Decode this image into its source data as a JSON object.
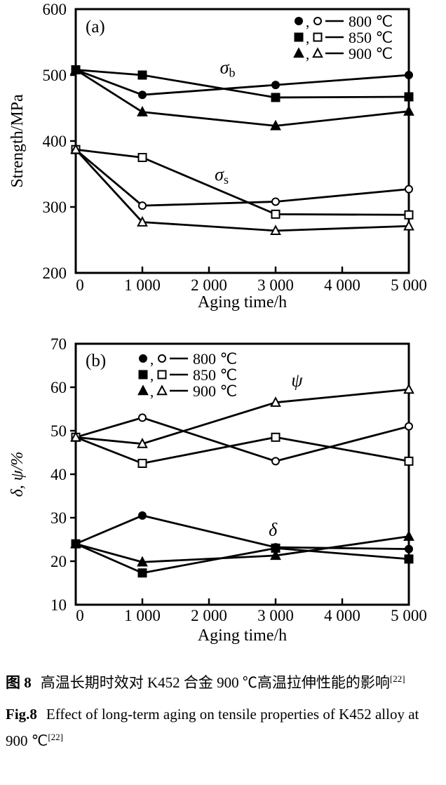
{
  "figure": {
    "panels": [
      "(a)",
      "(b)"
    ]
  },
  "caption": {
    "zh_prefix": "图 8",
    "zh_text": "高温长期时效对 K452 合金 900 ℃高温拉伸性能的影响",
    "zh_sup": "[22]",
    "en_prefix": "Fig.8",
    "en_text": "Effect of long-term aging on tensile properties of K452 alloy at 900 ℃",
    "en_sup": "[22]"
  },
  "chart_data": [
    {
      "id": "a",
      "type": "line",
      "panel_label": "(a)",
      "x": [
        0,
        1000,
        3000,
        5000
      ],
      "xlim": [
        0,
        5000
      ],
      "ylim": [
        200,
        600
      ],
      "x_ticks": [
        0,
        1000,
        2000,
        3000,
        4000,
        5000
      ],
      "x_tick_labels": [
        "0",
        "1 000",
        "2 000",
        "3 000",
        "4 000",
        "5 000"
      ],
      "y_ticks": [
        200,
        300,
        400,
        500,
        600
      ],
      "y_tick_labels": [
        "200",
        "300",
        "400",
        "500",
        "600"
      ],
      "xlabel": "Aging time/h",
      "ylabel": "Strength/MPa",
      "grid": false,
      "legend_position": "top-right",
      "legend": [
        {
          "filled_symbol": "●",
          "open_symbol": "○",
          "marker": "circle",
          "label": "800 ℃"
        },
        {
          "filled_symbol": "■",
          "open_symbol": "□",
          "marker": "square",
          "label": "850 ℃"
        },
        {
          "filled_symbol": "▲",
          "open_symbol": "△",
          "marker": "triangle",
          "label": "900 ℃"
        }
      ],
      "annotations": [
        {
          "text": "σ",
          "sub": "b",
          "x": 2280,
          "y": 511
        },
        {
          "text": "σ",
          "sub": "s",
          "x": 2190,
          "y": 349
        }
      ],
      "series": [
        {
          "name": "σb 800 ℃",
          "group": "σb",
          "temp": "800 ℃",
          "marker": "circle",
          "filled": true,
          "values": [
            508,
            470,
            485,
            500
          ]
        },
        {
          "name": "σb 850 ℃",
          "group": "σb",
          "temp": "850 ℃",
          "marker": "square",
          "filled": true,
          "values": [
            508,
            500,
            466,
            467
          ]
        },
        {
          "name": "σb 900 ℃",
          "group": "σb",
          "temp": "900 ℃",
          "marker": "triangle",
          "filled": true,
          "values": [
            508,
            444,
            423,
            445
          ]
        },
        {
          "name": "σs 800 ℃",
          "group": "σs",
          "temp": "800 ℃",
          "marker": "circle",
          "filled": false,
          "values": [
            387,
            302,
            308,
            327
          ]
        },
        {
          "name": "σs 850 ℃",
          "group": "σs",
          "temp": "850 ℃",
          "marker": "square",
          "filled": false,
          "values": [
            387,
            375,
            289,
            288
          ]
        },
        {
          "name": "σs 900 ℃",
          "group": "σs",
          "temp": "900 ℃",
          "marker": "triangle",
          "filled": false,
          "values": [
            387,
            277,
            264,
            271
          ]
        }
      ]
    },
    {
      "id": "b",
      "type": "line",
      "panel_label": "(b)",
      "x": [
        0,
        1000,
        3000,
        5000
      ],
      "xlim": [
        0,
        5000
      ],
      "ylim": [
        10,
        70
      ],
      "x_ticks": [
        0,
        1000,
        2000,
        3000,
        4000,
        5000
      ],
      "x_tick_labels": [
        "0",
        "1 000",
        "2 000",
        "3 000",
        "4 000",
        "5 000"
      ],
      "y_ticks": [
        10,
        20,
        30,
        40,
        50,
        60,
        70
      ],
      "y_tick_labels": [
        "10",
        "20",
        "30",
        "40",
        "50",
        "60",
        "70"
      ],
      "xlabel": "Aging time/h",
      "ylabel": "δ, ψ/%",
      "grid": false,
      "legend_position": "top-left",
      "legend": [
        {
          "filled_symbol": "●",
          "open_symbol": "○",
          "marker": "circle",
          "label": "800 ℃"
        },
        {
          "filled_symbol": "■",
          "open_symbol": "□",
          "marker": "square",
          "label": "850 ℃"
        },
        {
          "filled_symbol": "▲",
          "open_symbol": "△",
          "marker": "triangle",
          "label": "900 ℃"
        }
      ],
      "annotations": [
        {
          "text": "ψ",
          "x": 3320,
          "y": 61.5
        },
        {
          "text": "δ",
          "x": 2960,
          "y": 27.2
        }
      ],
      "series": [
        {
          "name": "ψ 800 ℃",
          "group": "ψ",
          "temp": "800 ℃",
          "marker": "circle",
          "filled": false,
          "values": [
            48.5,
            53,
            43,
            51
          ]
        },
        {
          "name": "ψ 850 ℃",
          "group": "ψ",
          "temp": "850 ℃",
          "marker": "square",
          "filled": false,
          "values": [
            48.5,
            42.5,
            48.5,
            43
          ]
        },
        {
          "name": "ψ 900 ℃",
          "group": "ψ",
          "temp": "900 ℃",
          "marker": "triangle",
          "filled": false,
          "values": [
            48.5,
            47,
            56.5,
            59.5
          ]
        },
        {
          "name": "δ 800 ℃",
          "group": "δ",
          "temp": "800 ℃",
          "marker": "circle",
          "filled": true,
          "values": [
            24,
            30.5,
            23.2,
            22.8
          ]
        },
        {
          "name": "δ 850 ℃",
          "group": "δ",
          "temp": "850 ℃",
          "marker": "square",
          "filled": true,
          "values": [
            24,
            17.3,
            23,
            20.5
          ]
        },
        {
          "name": "δ 900 ℃",
          "group": "δ",
          "temp": "900 ℃",
          "marker": "triangle",
          "filled": true,
          "values": [
            24,
            19.8,
            21.3,
            25.7
          ]
        }
      ]
    }
  ],
  "colors": {
    "ink": "#000000",
    "background": "#ffffff"
  }
}
